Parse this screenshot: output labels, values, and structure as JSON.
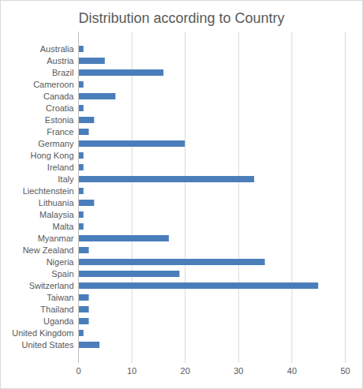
{
  "chart_data": {
    "type": "bar",
    "orientation": "horizontal",
    "title": "Distribution according to Country",
    "categories": [
      "Australia",
      "Austria",
      "Brazil",
      "Cameroon",
      "Canada",
      "Croatia",
      "Estonia",
      "France",
      "Germany",
      "Hong Kong",
      "Ireland",
      "Italy",
      "Liechtenstein",
      "Lithuania",
      "Malaysia",
      "Malta",
      "Myanmar",
      "New Zealand",
      "Nigeria",
      "Spain",
      "Switzerland",
      "Taiwan",
      "Thailand",
      "Uganda",
      "United Kingdom",
      "United States"
    ],
    "values": [
      1,
      5,
      16,
      1,
      7,
      1,
      3,
      2,
      20,
      1,
      1,
      33,
      1,
      3,
      1,
      1,
      17,
      2,
      35,
      19,
      45,
      2,
      2,
      2,
      1,
      4
    ],
    "color": "#4a7ebb",
    "xlim": [
      0,
      50
    ],
    "xticks": [
      0,
      10,
      20,
      30,
      40,
      50
    ],
    "grid": true
  }
}
